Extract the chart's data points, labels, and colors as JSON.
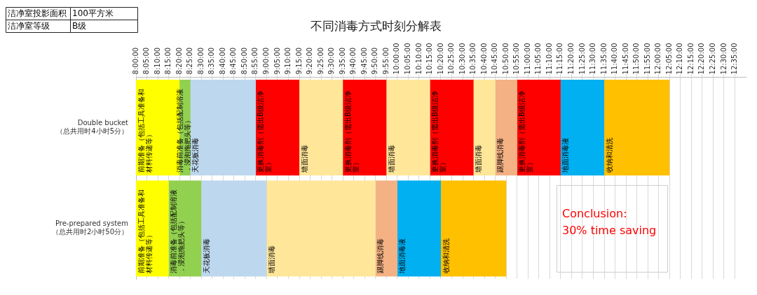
{
  "chart_data": {
    "type": "bar",
    "orientation": "horizontal",
    "title": "不同消毒方式时刻分解表",
    "categories": [
      "Double bucket\n（总共用时4小时5分）",
      "Pre-prepared system\n（总共用时2小时50分）"
    ],
    "series": [
      {
        "name": "前期准备（包括工具准备和材料传递等）",
        "color": "#ffff00",
        "values": [
          0.3333,
          null
        ],
        "base": [
          8,
          null
        ]
      },
      {
        "name": "消毒前准备（包括配制溶液，浸泡拖把头等）",
        "color": "#92d050",
        "values": [
          0.0833,
          null
        ],
        "base": [
          8.3333,
          null
        ]
      },
      {
        "name": "天花板消毒",
        "color": "#bdd7ee",
        "values": [
          0.5,
          null
        ],
        "base": [
          8.4167,
          null
        ]
      },
      {
        "name": "更换消毒剂（需出B级洁净室）",
        "color": "#ff0000",
        "values": [
          0.3333,
          null
        ],
        "base": [
          8.9167,
          null
        ]
      },
      {
        "name": "墙面消毒",
        "color": "#ffe699",
        "values": [
          0.3333,
          null
        ],
        "base": [
          9.25,
          null
        ]
      },
      {
        "name": "更换消毒剂（需出B级洁净室）",
        "color": "#ff0000",
        "values": [
          0.3333,
          null
        ],
        "base": [
          9.5833,
          null
        ]
      },
      {
        "name": "墙面消毒",
        "color": "#ffe699",
        "values": [
          0.3333,
          null
        ],
        "base": [
          9.9167,
          null
        ]
      },
      {
        "name": "更换消毒剂（需出B级洁净室）",
        "color": "#ff0000",
        "values": [
          0.3333,
          null
        ],
        "base": [
          10.25,
          null
        ]
      },
      {
        "name": "墙面消毒",
        "color": "#ffe699",
        "values": [
          0.1667,
          null
        ],
        "base": [
          10.5833,
          null
        ]
      },
      {
        "name": "踢脚线消毒",
        "color": "#f4b183",
        "values": [
          0.1667,
          null
        ],
        "base": [
          10.75,
          null
        ]
      },
      {
        "name": "更换消毒剂（需出B级洁净室）",
        "color": "#ff0000",
        "values": [
          0.3333,
          null
        ],
        "base": [
          10.9167,
          null
        ]
      },
      {
        "name": "地面消毒液",
        "color": "#00b0f0",
        "values": [
          0.3333,
          null
        ],
        "base": [
          11.25,
          null
        ]
      },
      {
        "name": "收纳和清洗",
        "color": "#ffc000",
        "values": [
          0.5,
          null
        ],
        "base": [
          11.5833,
          null
        ]
      },
      {
        "name": "前期准备（包括工具准备和材料传递等）",
        "color": "#ffff00",
        "values": [
          null,
          0.25
        ],
        "base": [
          null,
          8
        ]
      },
      {
        "name": "消毒前准备（包括配制溶液，浸泡拖把头等）",
        "color": "#92d050",
        "values": [
          null,
          0.25
        ],
        "base": [
          null,
          8.25
        ]
      },
      {
        "name": "天花板消毒",
        "color": "#bdd7ee",
        "values": [
          null,
          0.5
        ],
        "base": [
          null,
          8.5
        ]
      },
      {
        "name": "墙面消毒",
        "color": "#ffe699",
        "values": [
          null,
          0.8333
        ],
        "base": [
          null,
          9
        ]
      },
      {
        "name": "踢脚线消毒",
        "color": "#f4b183",
        "values": [
          null,
          0.1667
        ],
        "base": [
          null,
          9.8333
        ]
      },
      {
        "name": "地面消毒液",
        "color": "#00b0f0",
        "values": [
          null,
          0.3333
        ],
        "base": [
          null,
          10
        ]
      },
      {
        "name": "收纳和清洗",
        "color": "#ffc000",
        "values": [
          null,
          0.5
        ],
        "base": [
          null,
          10.3333
        ]
      }
    ],
    "xlim": [
      8,
      12.6667
    ],
    "xticks": [
      {
        "value": 8,
        "label": "8:00:00"
      },
      {
        "value": 8.0833,
        "label": "8:05:00"
      },
      {
        "value": 8.1667,
        "label": "8:10:00"
      },
      {
        "value": 8.25,
        "label": "8:15:00"
      },
      {
        "value": 8.3333,
        "label": "8:20:00"
      },
      {
        "value": 8.4167,
        "label": "8:25:00"
      },
      {
        "value": 8.5,
        "label": "8:30:00"
      },
      {
        "value": 8.5833,
        "label": "8:35:00"
      },
      {
        "value": 8.6667,
        "label": "8:40:00"
      },
      {
        "value": 8.75,
        "label": "8:45:00"
      },
      {
        "value": 8.8333,
        "label": "8:50:00"
      },
      {
        "value": 8.9167,
        "label": "8:55:00"
      },
      {
        "value": 9,
        "label": "9:00:00"
      },
      {
        "value": 9.0833,
        "label": "9:05:00"
      },
      {
        "value": 9.1667,
        "label": "9:10:00"
      },
      {
        "value": 9.25,
        "label": "9:15:00"
      },
      {
        "value": 9.3333,
        "label": "9:20:00"
      },
      {
        "value": 9.4167,
        "label": "9:25:00"
      },
      {
        "value": 9.5,
        "label": "9:30:00"
      },
      {
        "value": 9.5833,
        "label": "9:35:00"
      },
      {
        "value": 9.6667,
        "label": "9:40:00"
      },
      {
        "value": 9.75,
        "label": "9:45:00"
      },
      {
        "value": 9.8333,
        "label": "9:50:00"
      },
      {
        "value": 9.9167,
        "label": "9:55:00"
      },
      {
        "value": 10,
        "label": "10:00:00"
      },
      {
        "value": 10.0833,
        "label": "10:05:00"
      },
      {
        "value": 10.1667,
        "label": "10:10:00"
      },
      {
        "value": 10.25,
        "label": "10:15:00"
      },
      {
        "value": 10.3333,
        "label": "10:20:00"
      },
      {
        "value": 10.4167,
        "label": "10:25:00"
      },
      {
        "value": 10.5,
        "label": "10:30:00"
      },
      {
        "value": 10.5833,
        "label": "10:35:00"
      },
      {
        "value": 10.6667,
        "label": "10:40:00"
      },
      {
        "value": 10.75,
        "label": "10:45:00"
      },
      {
        "value": 10.8333,
        "label": "10:50:00"
      },
      {
        "value": 10.9167,
        "label": "10:55:00"
      },
      {
        "value": 11,
        "label": "11:00:00"
      },
      {
        "value": 11.0833,
        "label": "11:05:00"
      },
      {
        "value": 11.1667,
        "label": "11:10:00"
      },
      {
        "value": 11.25,
        "label": "11:15:00"
      },
      {
        "value": 11.3333,
        "label": "11:20:00"
      },
      {
        "value": 11.4167,
        "label": "11:25:00"
      },
      {
        "value": 11.5,
        "label": "11:30:00"
      },
      {
        "value": 11.5833,
        "label": "11:35:00"
      },
      {
        "value": 11.6667,
        "label": "11:40:00"
      },
      {
        "value": 11.75,
        "label": "11:45:00"
      },
      {
        "value": 11.8333,
        "label": "11:50:00"
      },
      {
        "value": 11.9167,
        "label": "11:55:00"
      },
      {
        "value": 12,
        "label": "12:00:00"
      },
      {
        "value": 12.0833,
        "label": "12:05:00"
      },
      {
        "value": 12.1667,
        "label": "12:10:00"
      },
      {
        "value": 12.25,
        "label": "12:15:00"
      },
      {
        "value": 12.3333,
        "label": "12:20:00"
      },
      {
        "value": 12.4167,
        "label": "12:25:00"
      },
      {
        "value": 12.5,
        "label": "12:30:00"
      },
      {
        "value": 12.5833,
        "label": "12:35:00"
      }
    ],
    "grid": "x",
    "annotations": [
      "洁净室投影面积",
      "100平方米",
      "洁净室等级",
      "B级",
      "Conclusion:",
      "30% time saving"
    ]
  }
}
